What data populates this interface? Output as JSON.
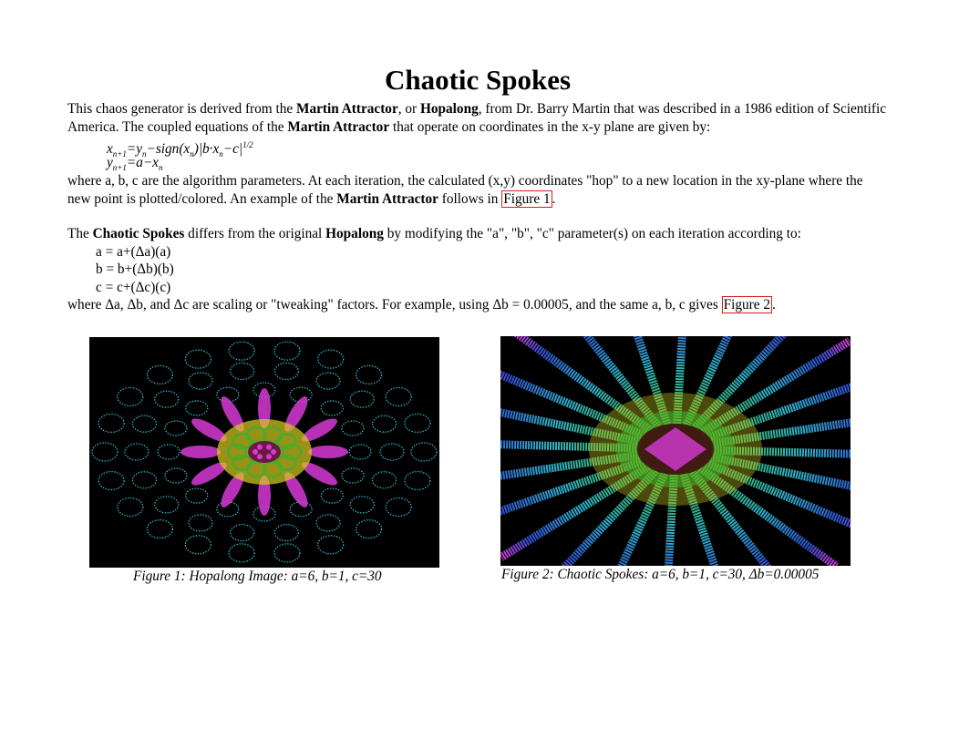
{
  "title": "Chaotic Spokes",
  "intro": {
    "t1": "This chaos generator is derived from the ",
    "b1": "Martin Attractor",
    "t2": ", or ",
    "b2": "Hopalong",
    "t3": ", from Dr. Barry Martin that was described in a 1986 edition of Scientific America. The coupled equations of the ",
    "b3": "Martin Attractor",
    "t4": " that operate on coordinates in the x-y plane are given by:"
  },
  "equations": {
    "eq1_lhs": "x",
    "eq1_lhs_sub": "n+1",
    "eq1_rhs_a": "=y",
    "eq1_rhs_a_sub": "n",
    "eq1_rhs_b": "−sign(x",
    "eq1_rhs_b_sub": "n",
    "eq1_rhs_c": ")|b·x",
    "eq1_rhs_c_sub": "n",
    "eq1_rhs_d": "−c|",
    "eq1_rhs_sup": "1/2",
    "eq2_lhs": "y",
    "eq2_lhs_sub": "n+1",
    "eq2_rhs": "=a−x",
    "eq2_rhs_sub": "n"
  },
  "params_text": {
    "t1": "where a, b, c are the algorithm parameters. At each iteration, the calculated (x,y) coordinates \"hop\" to a new location in the xy-plane where the new point is plotted/colored. An example of the ",
    "b1": "Martin Attractor",
    "t2": " follows in ",
    "link": "Figure 1",
    "t3": "."
  },
  "spokes_text": {
    "t1": "The ",
    "b1": "Chaotic Spokes",
    "t2": " differs from the original ",
    "b2": "Hopalong",
    "t3": " by modifying the \"a\", \"b\", \"c\" parameter(s) on each iteration according to:"
  },
  "definitions": [
    "a = a+(Δa)(a)",
    "b = b+(Δb)(b)",
    "c = c+(Δc)(c)"
  ],
  "scaling_text": {
    "t1": "where Δa, Δb, and Δc are scaling or \"tweaking\" factors. For example, using Δb = 0.00005, and the same a, b, c gives ",
    "link": "Figure 2",
    "t2": "."
  },
  "figure1": {
    "caption": "Figure 1: Hopalong Image: a=6, b=1, c=30"
  },
  "figure2": {
    "caption": "Figure 2: Chaotic Spokes: a=6, b=1, c=30, Δb=0.00005"
  },
  "colors": {
    "link_border": "#d42020",
    "figure_bg": "#000000",
    "magenta": "#d63ad6",
    "cyan": "#2fb0c8",
    "yellow": "#d8d020",
    "green": "#3cb030",
    "blue": "#3050d0"
  }
}
